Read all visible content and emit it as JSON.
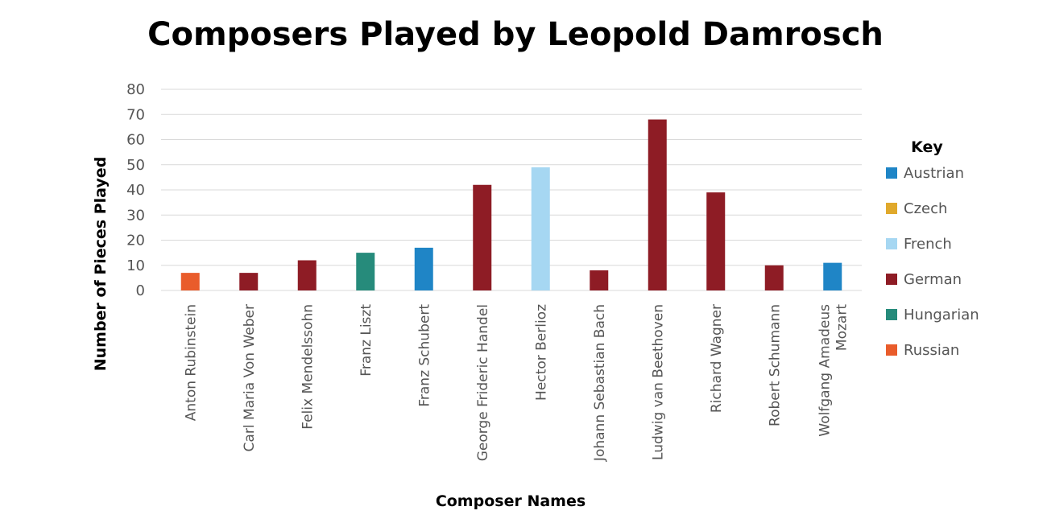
{
  "chart_data": {
    "type": "bar",
    "title": "Composers Played by Leopold Damrosch",
    "xlabel": "Composer Names",
    "ylabel": "Number of Pieces Played",
    "ylim": [
      0,
      80
    ],
    "yticks": [
      0,
      10,
      20,
      30,
      40,
      50,
      60,
      70,
      80
    ],
    "grid": true,
    "legend": {
      "title": "Key",
      "position": "right",
      "entries": [
        {
          "name": "Austrian",
          "color": "#1f85c6"
        },
        {
          "name": "Czech",
          "color": "#e0a92c"
        },
        {
          "name": "French",
          "color": "#a6d7f2"
        },
        {
          "name": "German",
          "color": "#8e1c25"
        },
        {
          "name": "Hungarian",
          "color": "#268b7b"
        },
        {
          "name": "Russian",
          "color": "#e95c2b"
        }
      ]
    },
    "bars": [
      {
        "composer": "Anton Rubinstein",
        "label_lines": [
          "Anton Rubinstein"
        ],
        "value": 7,
        "group": "Russian"
      },
      {
        "composer": "Carl Maria Von Weber",
        "label_lines": [
          "Carl Maria Von Weber"
        ],
        "value": 7,
        "group": "German"
      },
      {
        "composer": "Felix Mendelssohn",
        "label_lines": [
          "Felix Mendelssohn"
        ],
        "value": 12,
        "group": "German"
      },
      {
        "composer": "Franz Liszt",
        "label_lines": [
          "Franz Liszt"
        ],
        "value": 15,
        "group": "Hungarian"
      },
      {
        "composer": "Franz Schubert",
        "label_lines": [
          "Franz Schubert"
        ],
        "value": 17,
        "group": "Austrian"
      },
      {
        "composer": "George Frideric Handel",
        "label_lines": [
          "George Frideric Handel"
        ],
        "value": 42,
        "group": "German"
      },
      {
        "composer": "Hector Berlioz",
        "label_lines": [
          "Hector Berlioz"
        ],
        "value": 49,
        "group": "French"
      },
      {
        "composer": "Johann Sebastian Bach",
        "label_lines": [
          "Johann Sebastian Bach"
        ],
        "value": 8,
        "group": "German"
      },
      {
        "composer": "Ludwig van Beethoven",
        "label_lines": [
          "Ludwig van Beethoven"
        ],
        "value": 68,
        "group": "German"
      },
      {
        "composer": "Richard Wagner",
        "label_lines": [
          "Richard Wagner"
        ],
        "value": 39,
        "group": "German"
      },
      {
        "composer": "Robert Schumann",
        "label_lines": [
          "Robert Schumann"
        ],
        "value": 10,
        "group": "German"
      },
      {
        "composer": "Wolfgang Amadeus Mozart",
        "label_lines": [
          "Wolfgang Amadeus",
          "Mozart"
        ],
        "value": 11,
        "group": "Austrian"
      }
    ]
  }
}
